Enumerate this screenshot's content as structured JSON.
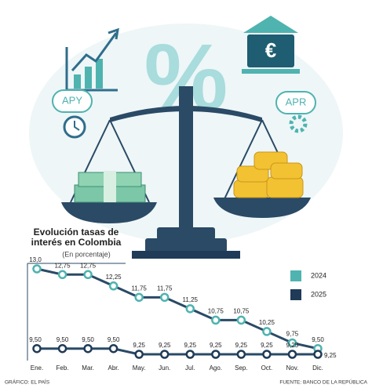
{
  "illustration": {
    "percent": "%",
    "apy": "APY",
    "apr": "APR",
    "euro": "€"
  },
  "chart_data": {
    "type": "line",
    "title": "Evolución tasas de interés en Colombia",
    "subtitle": "(En porcentaje)",
    "categories": [
      "Ene.",
      "Feb.",
      "Mar.",
      "Abr.",
      "May.",
      "Jun.",
      "Jul.",
      "Ago.",
      "Sep.",
      "Oct.",
      "Nov.",
      "Dic."
    ],
    "series": [
      {
        "name": "2024",
        "color": "#4fb3b0",
        "values": [
          13.0,
          12.75,
          12.75,
          12.25,
          11.75,
          11.75,
          11.25,
          10.75,
          10.75,
          10.25,
          9.75,
          9.5
        ],
        "value_labels": [
          "13,0",
          "12,75",
          "12,75",
          "12,25",
          "11,75",
          "11,75",
          "11,25",
          "10,75",
          "10,75",
          "10,25",
          "9,75",
          "9,50"
        ]
      },
      {
        "name": "2025",
        "color": "#1f3b57",
        "values": [
          9.5,
          9.5,
          9.5,
          9.5,
          9.25,
          9.25,
          9.25,
          9.25,
          9.25,
          9.25,
          9.25,
          9.25
        ],
        "value_labels": [
          "9,50",
          "9,50",
          "9,50",
          "9,50",
          "9,25",
          "9,25",
          "9,25",
          "9,25",
          "9,25",
          "9,25",
          "9,25",
          "9,25"
        ]
      }
    ],
    "legend": "right",
    "footer_left": "GRÁFICO: EL PAÍS",
    "footer_right": "FUENTE: BANCO DE LA REPÚBLICA"
  }
}
